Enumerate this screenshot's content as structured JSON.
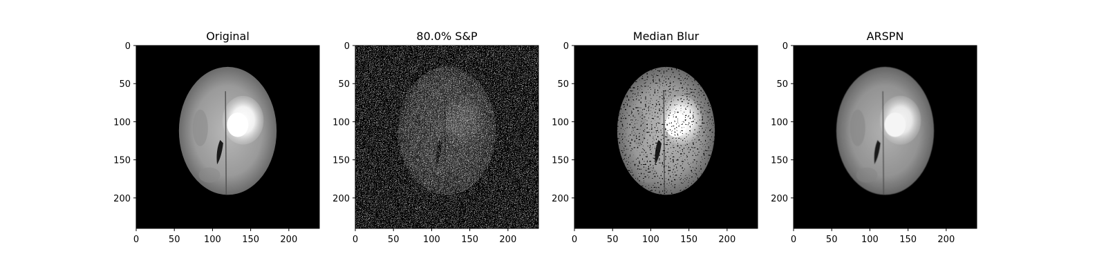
{
  "figure": {
    "background": "#ffffff",
    "axis_ticks": {
      "x": [
        "0",
        "50",
        "100",
        "150",
        "200"
      ],
      "y": [
        "0",
        "50",
        "100",
        "150",
        "200"
      ]
    },
    "panels": [
      {
        "title": "Original",
        "image": "brain-mri-axial-slice"
      },
      {
        "title": "80.0% S&P",
        "image": "salt-and-pepper-noisy-slice"
      },
      {
        "title": "Median Blur",
        "image": "median-filtered-slice"
      },
      {
        "title": "ARSPN",
        "image": "arspn-restored-slice"
      }
    ]
  }
}
